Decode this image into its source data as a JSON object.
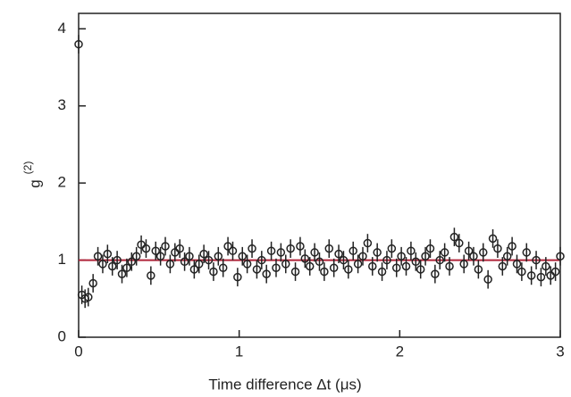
{
  "chart_data": {
    "type": "scatter",
    "x_label": "Time difference Δt (μs)",
    "y_label": "g",
    "y_label_superscript": "(2)",
    "xlim": [
      0,
      3
    ],
    "ylim": [
      0,
      4.2
    ],
    "xticks": [
      0,
      1,
      2,
      3
    ],
    "yticks": [
      0,
      1,
      2,
      3,
      4
    ],
    "reference_line": {
      "value": 1,
      "color": "#b0253a"
    },
    "x": [
      0,
      0.02,
      0.04,
      0.06,
      0.09,
      0.12,
      0.15,
      0.18,
      0.21,
      0.24,
      0.27,
      0.3,
      0.33,
      0.36,
      0.39,
      0.42,
      0.45,
      0.48,
      0.51,
      0.54,
      0.57,
      0.6,
      0.63,
      0.66,
      0.69,
      0.72,
      0.75,
      0.78,
      0.81,
      0.84,
      0.87,
      0.9,
      0.93,
      0.96,
      0.99,
      1.02,
      1.05,
      1.08,
      1.11,
      1.14,
      1.17,
      1.2,
      1.23,
      1.26,
      1.29,
      1.32,
      1.35,
      1.38,
      1.41,
      1.44,
      1.47,
      1.5,
      1.53,
      1.56,
      1.59,
      1.62,
      1.65,
      1.68,
      1.71,
      1.74,
      1.77,
      1.8,
      1.83,
      1.86,
      1.89,
      1.92,
      1.95,
      1.98,
      2.01,
      2.04,
      2.07,
      2.1,
      2.13,
      2.16,
      2.19,
      2.22,
      2.25,
      2.28,
      2.31,
      2.34,
      2.37,
      2.4,
      2.43,
      2.46,
      2.49,
      2.52,
      2.55,
      2.58,
      2.61,
      2.64,
      2.67,
      2.7,
      2.73,
      2.76,
      2.79,
      2.82,
      2.85,
      2.88,
      2.91,
      2.94,
      2.97,
      3.0
    ],
    "series": [
      {
        "color": "#222222",
        "error": 0.12,
        "values": [
          3.8,
          0.55,
          0.5,
          0.52,
          0.7,
          1.05,
          0.95,
          1.08,
          0.92,
          1.0,
          0.82,
          0.9,
          0.98,
          1.05,
          1.2,
          1.15,
          0.8,
          1.12,
          1.05,
          1.18,
          0.95,
          1.1,
          1.15,
          0.98,
          1.05,
          0.88,
          0.95,
          1.08,
          1.0,
          0.85,
          1.05,
          0.9,
          1.18,
          1.12,
          0.78,
          1.05,
          0.95,
          1.15,
          0.88,
          1.0,
          0.82,
          1.12,
          0.9,
          1.1,
          0.95,
          1.15,
          0.85,
          1.18,
          1.02,
          0.92,
          1.1,
          0.98,
          0.85,
          1.15,
          0.9,
          1.08,
          1.0,
          0.88,
          1.12,
          0.95,
          1.05,
          1.22,
          0.92,
          1.1,
          0.85,
          1.0,
          1.15,
          0.9,
          1.05,
          0.92,
          1.12,
          0.98,
          0.88,
          1.05,
          1.15,
          0.82,
          1.0,
          1.1,
          0.92,
          1.3,
          1.22,
          0.95,
          1.12,
          1.05,
          0.88,
          1.1,
          0.75,
          1.28,
          1.15,
          0.92,
          1.05,
          1.18,
          0.95,
          0.85,
          1.1,
          0.8,
          1.0,
          0.78,
          0.92,
          0.8,
          0.85,
          1.05
        ]
      }
    ]
  }
}
